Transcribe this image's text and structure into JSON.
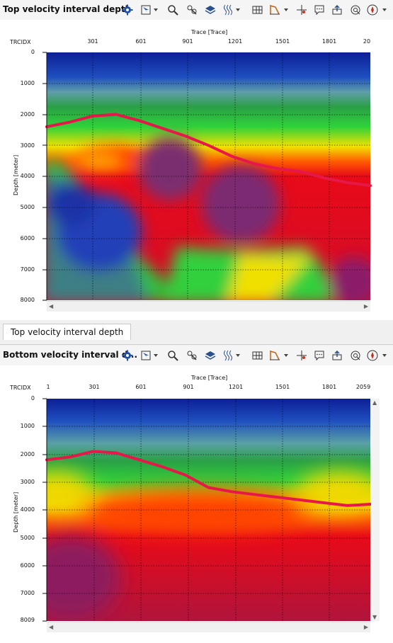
{
  "panels": [
    {
      "title": "Top velocity interval depth",
      "corner_label": "TRCIDX",
      "x_axis_label": "Trace [Trace]",
      "x_ticks": [
        "301",
        "601",
        "901",
        "1201",
        "1501",
        "1801",
        "20"
      ],
      "y_axis_label": "Depth [meter]",
      "y_ticks": [
        "0",
        "1000",
        "2000",
        "3000",
        "4000",
        "5000",
        "6000",
        "7000",
        "8000"
      ],
      "horizon_color": "#e8174a",
      "horizon_depths": [
        2400,
        2250,
        2050,
        2000,
        2200,
        2450,
        2700,
        3000,
        3350,
        3600,
        3750,
        3850,
        4050,
        4200,
        4300
      ],
      "grid": true
    },
    {
      "title": "Bottom velocity interval d...",
      "corner_label": "TRCIDX",
      "x_axis_label": "Trace [Trace]",
      "x_ticks": [
        "1",
        "301",
        "601",
        "901",
        "1201",
        "1501",
        "1801",
        "2059"
      ],
      "y_axis_label": "Depth [meter]",
      "y_ticks": [
        "0",
        "1000",
        "2000",
        "3000",
        "4000",
        "5000",
        "6000",
        "7000",
        "8009"
      ],
      "horizon_color": "#e8174a",
      "horizon_depths": [
        2200,
        2100,
        1900,
        1950,
        2200,
        2450,
        2750,
        3200,
        3350,
        3450,
        3550,
        3650,
        3750,
        3850,
        3800
      ],
      "grid": true
    }
  ],
  "tab": {
    "label": "Top velocity interval depth"
  },
  "toolbar_icons": [
    "gear-icon",
    "select-pointer-icon",
    "zoom-icon",
    "pick-icon",
    "layers-icon",
    "wiggle-icon",
    "table-icon",
    "chart-icon",
    "crosshair-icon",
    "comment-icon",
    "export-icon",
    "fit-icon",
    "compass-icon"
  ],
  "colorscale": [
    "#0a1f9a",
    "#1f58c4",
    "#4aa4a0",
    "#2aa84a",
    "#2fd13a",
    "#f5e500",
    "#ff5a00",
    "#e80a18",
    "#7f1c6a"
  ]
}
